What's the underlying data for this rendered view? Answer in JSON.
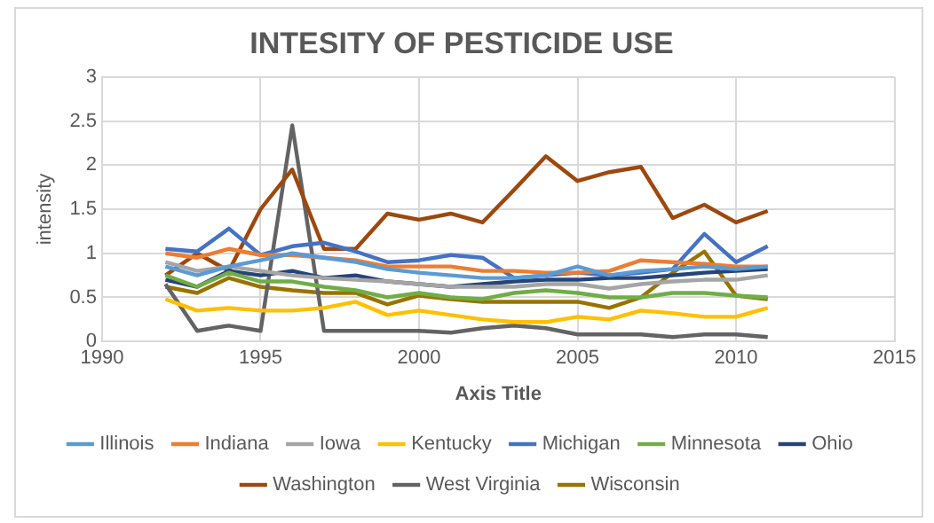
{
  "chart_data": {
    "type": "line",
    "title": "INTESITY OF PESTICIDE USE",
    "xlabel": "Axis Title",
    "ylabel": "intensity",
    "x": [
      1992,
      1993,
      1994,
      1995,
      1996,
      1997,
      1998,
      1999,
      2000,
      2001,
      2002,
      2003,
      2004,
      2005,
      2006,
      2007,
      2008,
      2009,
      2010,
      2011
    ],
    "xlim": [
      1990,
      2015
    ],
    "xticks": [
      1990,
      1995,
      2000,
      2005,
      2010,
      2015
    ],
    "ylim": [
      0,
      3
    ],
    "yticks": [
      0,
      0.5,
      1,
      1.5,
      2,
      2.5,
      3
    ],
    "grid": true,
    "legend": "bottom",
    "marker": "none",
    "line_style": "solid",
    "series": [
      {
        "name": "Illinois",
        "color": "#5b9bd5",
        "values": [
          0.85,
          0.75,
          0.85,
          0.92,
          1.0,
          0.95,
          0.9,
          0.82,
          0.78,
          0.75,
          0.72,
          0.72,
          0.75,
          0.85,
          0.75,
          0.8,
          0.82,
          0.85,
          0.82,
          0.85
        ]
      },
      {
        "name": "Indiana",
        "color": "#ed7d31",
        "values": [
          1.0,
          0.95,
          1.05,
          0.98,
          0.98,
          0.95,
          0.92,
          0.85,
          0.85,
          0.85,
          0.8,
          0.8,
          0.78,
          0.78,
          0.8,
          0.92,
          0.9,
          0.88,
          0.85,
          0.85
        ]
      },
      {
        "name": "Iowa",
        "color": "#a5a5a5",
        "values": [
          0.9,
          0.8,
          0.85,
          0.8,
          0.75,
          0.72,
          0.7,
          0.68,
          0.65,
          0.62,
          0.62,
          0.62,
          0.65,
          0.65,
          0.6,
          0.65,
          0.68,
          0.7,
          0.7,
          0.75
        ]
      },
      {
        "name": "Kentucky",
        "color": "#ffc000",
        "values": [
          0.48,
          0.35,
          0.38,
          0.35,
          0.35,
          0.38,
          0.45,
          0.3,
          0.35,
          0.3,
          0.25,
          0.22,
          0.22,
          0.28,
          0.25,
          0.35,
          0.32,
          0.28,
          0.28,
          0.38
        ]
      },
      {
        "name": "Michigan",
        "color": "#4472c4",
        "values": [
          1.05,
          1.02,
          1.28,
          0.98,
          1.08,
          1.12,
          1.02,
          0.9,
          0.92,
          0.98,
          0.95,
          0.72,
          0.75,
          0.78,
          0.75,
          0.78,
          0.82,
          1.22,
          0.9,
          1.08
        ]
      },
      {
        "name": "Minnesota",
        "color": "#70ad47",
        "values": [
          0.75,
          0.62,
          0.78,
          0.68,
          0.68,
          0.62,
          0.58,
          0.5,
          0.55,
          0.5,
          0.48,
          0.55,
          0.58,
          0.55,
          0.5,
          0.5,
          0.55,
          0.55,
          0.52,
          0.5
        ]
      },
      {
        "name": "Ohio",
        "color": "#264478",
        "values": [
          0.7,
          0.62,
          0.8,
          0.75,
          0.8,
          0.72,
          0.75,
          0.68,
          0.65,
          0.62,
          0.65,
          0.68,
          0.7,
          0.7,
          0.72,
          0.72,
          0.75,
          0.78,
          0.8,
          0.82
        ]
      },
      {
        "name": "Washington",
        "color": "#9e480e",
        "values": [
          0.75,
          1.0,
          0.8,
          1.5,
          1.95,
          1.05,
          1.05,
          1.45,
          1.38,
          1.45,
          1.35,
          1.72,
          2.1,
          1.82,
          1.92,
          1.98,
          1.4,
          1.55,
          1.35,
          1.48
        ]
      },
      {
        "name": "West Virginia",
        "color": "#636363",
        "values": [
          0.65,
          0.12,
          0.18,
          0.12,
          2.45,
          0.12,
          0.12,
          0.12,
          0.12,
          0.1,
          0.15,
          0.18,
          0.15,
          0.08,
          0.08,
          0.08,
          0.05,
          0.08,
          0.08,
          0.05
        ]
      },
      {
        "name": "Wisconsin",
        "color": "#997300",
        "values": [
          0.62,
          0.55,
          0.72,
          0.62,
          0.58,
          0.55,
          0.55,
          0.42,
          0.52,
          0.48,
          0.45,
          0.45,
          0.45,
          0.45,
          0.38,
          0.5,
          0.78,
          1.02,
          0.52,
          0.48
        ]
      }
    ]
  }
}
